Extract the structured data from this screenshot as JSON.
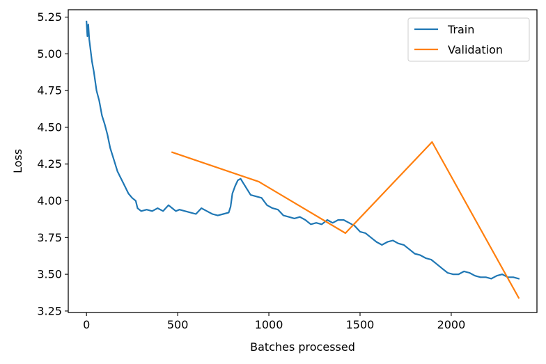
{
  "chart_data": {
    "type": "line",
    "title": "",
    "xlabel": "Batches processed",
    "ylabel": "Loss",
    "xlim": [
      -100,
      2470
    ],
    "ylim": [
      3.24,
      5.3
    ],
    "xticks": [
      0,
      500,
      1000,
      1500,
      2000
    ],
    "xtick_labels": [
      "0",
      "500",
      "1000",
      "1500",
      "2000"
    ],
    "yticks": [
      3.25,
      3.5,
      3.75,
      4.0,
      4.25,
      4.5,
      4.75,
      5.0,
      5.25
    ],
    "ytick_labels": [
      "3.25",
      "3.50",
      "3.75",
      "4.00",
      "4.25",
      "4.50",
      "4.75",
      "5.00",
      "5.25"
    ],
    "grid": false,
    "legend_position": "top-right",
    "series": [
      {
        "name": "Train",
        "color": "#1f77b4",
        "points": [
          [
            0,
            5.22
          ],
          [
            5,
            5.12
          ],
          [
            10,
            5.2
          ],
          [
            15,
            5.1
          ],
          [
            20,
            5.05
          ],
          [
            30,
            4.95
          ],
          [
            40,
            4.88
          ],
          [
            55,
            4.75
          ],
          [
            70,
            4.68
          ],
          [
            85,
            4.58
          ],
          [
            100,
            4.52
          ],
          [
            115,
            4.45
          ],
          [
            130,
            4.36
          ],
          [
            150,
            4.28
          ],
          [
            170,
            4.2
          ],
          [
            190,
            4.15
          ],
          [
            210,
            4.1
          ],
          [
            230,
            4.05
          ],
          [
            250,
            4.02
          ],
          [
            270,
            4.0
          ],
          [
            280,
            3.95
          ],
          [
            300,
            3.93
          ],
          [
            330,
            3.94
          ],
          [
            360,
            3.93
          ],
          [
            390,
            3.95
          ],
          [
            420,
            3.93
          ],
          [
            450,
            3.97
          ],
          [
            470,
            3.95
          ],
          [
            490,
            3.93
          ],
          [
            510,
            3.94
          ],
          [
            540,
            3.93
          ],
          [
            570,
            3.92
          ],
          [
            600,
            3.91
          ],
          [
            630,
            3.95
          ],
          [
            660,
            3.93
          ],
          [
            690,
            3.91
          ],
          [
            720,
            3.9
          ],
          [
            750,
            3.91
          ],
          [
            780,
            3.92
          ],
          [
            790,
            3.96
          ],
          [
            800,
            4.05
          ],
          [
            815,
            4.1
          ],
          [
            830,
            4.14
          ],
          [
            845,
            4.15
          ],
          [
            860,
            4.12
          ],
          [
            880,
            4.08
          ],
          [
            900,
            4.04
          ],
          [
            930,
            4.03
          ],
          [
            960,
            4.02
          ],
          [
            990,
            3.97
          ],
          [
            1020,
            3.95
          ],
          [
            1050,
            3.94
          ],
          [
            1080,
            3.9
          ],
          [
            1110,
            3.89
          ],
          [
            1140,
            3.88
          ],
          [
            1170,
            3.89
          ],
          [
            1200,
            3.87
          ],
          [
            1230,
            3.84
          ],
          [
            1260,
            3.85
          ],
          [
            1290,
            3.84
          ],
          [
            1320,
            3.87
          ],
          [
            1350,
            3.85
          ],
          [
            1380,
            3.87
          ],
          [
            1410,
            3.87
          ],
          [
            1440,
            3.85
          ],
          [
            1470,
            3.83
          ],
          [
            1500,
            3.79
          ],
          [
            1530,
            3.78
          ],
          [
            1560,
            3.75
          ],
          [
            1590,
            3.72
          ],
          [
            1620,
            3.7
          ],
          [
            1650,
            3.72
          ],
          [
            1680,
            3.73
          ],
          [
            1710,
            3.71
          ],
          [
            1740,
            3.7
          ],
          [
            1770,
            3.67
          ],
          [
            1800,
            3.64
          ],
          [
            1830,
            3.63
          ],
          [
            1860,
            3.61
          ],
          [
            1890,
            3.6
          ],
          [
            1920,
            3.57
          ],
          [
            1950,
            3.54
          ],
          [
            1980,
            3.51
          ],
          [
            2010,
            3.5
          ],
          [
            2040,
            3.5
          ],
          [
            2070,
            3.52
          ],
          [
            2100,
            3.51
          ],
          [
            2130,
            3.49
          ],
          [
            2160,
            3.48
          ],
          [
            2190,
            3.48
          ],
          [
            2220,
            3.47
          ],
          [
            2250,
            3.49
          ],
          [
            2280,
            3.5
          ],
          [
            2310,
            3.48
          ],
          [
            2340,
            3.48
          ],
          [
            2370,
            3.47
          ]
        ]
      },
      {
        "name": "Validation",
        "color": "#ff7f0e",
        "points": [
          [
            470,
            4.33
          ],
          [
            945,
            4.13
          ],
          [
            1420,
            3.78
          ],
          [
            1895,
            4.4
          ],
          [
            2370,
            3.34
          ]
        ]
      }
    ]
  }
}
